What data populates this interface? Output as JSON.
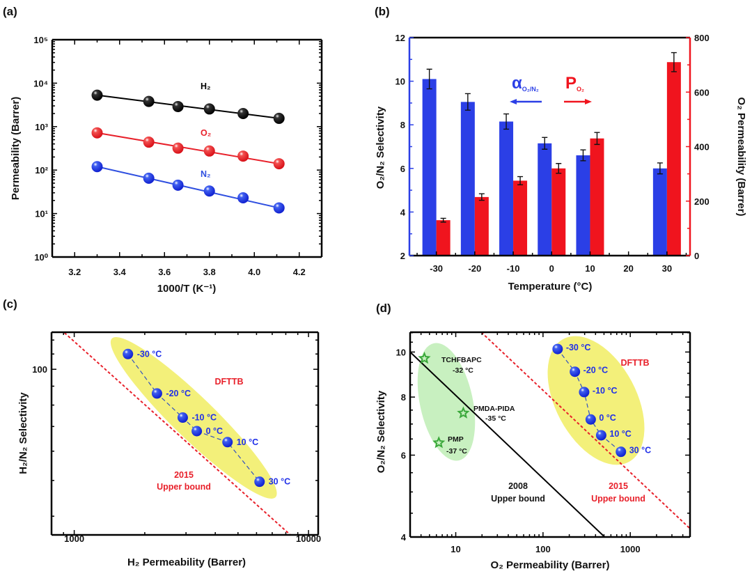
{
  "chart_data": [
    {
      "panel_label": "(a)",
      "type": "line",
      "xlabel": "1000/T (K⁻¹)",
      "ylabel": "Permeability (Barrer)",
      "xscale": "linear",
      "yscale": "log",
      "xlim": [
        3.1,
        4.3
      ],
      "ylim": [
        1,
        100000
      ],
      "xticks": [
        "3.2",
        "3.4",
        "3.6",
        "3.8",
        "4.0",
        "4.2"
      ],
      "yticks": [
        "10⁰",
        "10¹",
        "10²",
        "10³",
        "10⁴",
        "10⁵"
      ],
      "x": [
        3.3,
        3.53,
        3.66,
        3.8,
        3.95,
        4.11
      ],
      "series": [
        {
          "name": "H₂",
          "color": "#000000",
          "values": [
            5300,
            3800,
            2900,
            2550,
            2000,
            1550
          ]
        },
        {
          "name": "O₂",
          "color": "#e8202a",
          "values": [
            720,
            440,
            320,
            275,
            210,
            140
          ]
        },
        {
          "name": "N₂",
          "color": "#2f4fe0",
          "values": [
            120,
            65,
            45,
            33,
            23,
            13.5
          ]
        }
      ]
    },
    {
      "panel_label": "(b)",
      "type": "bar",
      "xlabel": "Temperature (°C)",
      "ylabel_left": "O₂/N₂ Selectivity",
      "ylabel_right": "O₂ Permeability (Barrer)",
      "categories": [
        "-30",
        "-20",
        "-10",
        "0",
        "10",
        "20",
        "30"
      ],
      "ylim_left": [
        2,
        12
      ],
      "ylim_right": [
        0,
        800
      ],
      "yticks_left": [
        "2",
        "4",
        "6",
        "8",
        "10",
        "12"
      ],
      "yticks_right": [
        "0",
        "200",
        "400",
        "600",
        "800"
      ],
      "legend": [
        {
          "symbol": "α",
          "sub": "O₂/N₂",
          "color": "#2b3fe6",
          "direction": "left"
        },
        {
          "symbol": "P",
          "sub": "O₂",
          "color": "#f0141e",
          "direction": "right"
        }
      ],
      "series": [
        {
          "axis": "left",
          "color": "#2b3fe6",
          "values": [
            10.1,
            9.05,
            8.15,
            7.15,
            6.6,
            null,
            6.0
          ],
          "errors": [
            0.45,
            0.38,
            0.35,
            0.27,
            0.25,
            null,
            0.25
          ]
        },
        {
          "axis": "right",
          "color": "#f0141e",
          "values": [
            130,
            215,
            275,
            320,
            430,
            null,
            710
          ],
          "errors": [
            7,
            12,
            15,
            18,
            22,
            null,
            35
          ]
        }
      ]
    },
    {
      "panel_label": "(c)",
      "type": "scatter",
      "xlabel": "H₂ Permeability (Barrer)",
      "ylabel": "H₂/N₂ Selectivity",
      "xscale": "log",
      "yscale": "log",
      "xlim": [
        800,
        11000
      ],
      "ylim": [
        35.6,
        126
      ],
      "xticks": [
        "1000",
        "10000"
      ],
      "yticks": [
        "100"
      ],
      "points": [
        {
          "label": "-30 °C",
          "x": 1695,
          "y": 110
        },
        {
          "label": "-20 °C",
          "x": 2255,
          "y": 86
        },
        {
          "label": "-10 °C",
          "x": 2905,
          "y": 74
        },
        {
          "label": "0 °C",
          "x": 3335,
          "y": 68
        },
        {
          "label": "10 °C",
          "x": 4510,
          "y": 63.5
        },
        {
          "label": "30 °C",
          "x": 6180,
          "y": 49.6
        }
      ],
      "material": "DFTTB",
      "upper_bound_2015": {
        "line1": "2015",
        "line2": "Upper bound",
        "from": [
          908,
          125.6
        ],
        "to": [
          8370,
          35.6
        ]
      },
      "colors": {
        "points": "#1f2fe8",
        "bound": "#e8202a",
        "highlight": "#f3f07a"
      }
    },
    {
      "panel_label": "(d)",
      "type": "scatter",
      "xlabel": "O₂ Permeability (Barrer)",
      "ylabel": "O₂/N₂ Selectivity",
      "xscale": "log",
      "yscale": "log",
      "xlim": [
        3,
        4840
      ],
      "ylim": [
        4,
        11.03
      ],
      "xticks": [
        "10",
        "100",
        "1000"
      ],
      "yticks": [
        "4",
        "6",
        "8",
        "10"
      ],
      "points": [
        {
          "label": "-30 °C",
          "x": 147,
          "y": 10.15
        },
        {
          "label": "-20 °C",
          "x": 232,
          "y": 9.07
        },
        {
          "label": "-10 °C",
          "x": 296,
          "y": 8.2
        },
        {
          "label": "0 °C",
          "x": 352,
          "y": 7.16
        },
        {
          "label": "10 °C",
          "x": 464,
          "y": 6.62
        },
        {
          "label": "30 °C",
          "x": 781,
          "y": 6.1
        }
      ],
      "material": "DFTTB",
      "references": [
        {
          "name": "TCHFBAPC",
          "temp": "-32 °C",
          "x": 4.37,
          "y": 9.69
        },
        {
          "name": "PMDA-PIDA",
          "temp": "-35 °C",
          "x": 12.2,
          "y": 7.39
        },
        {
          "name": "PMP",
          "temp": "-37 °C",
          "x": 6.4,
          "y": 6.38
        }
      ],
      "upper_bound_2008": {
        "line1": "2008",
        "line2": "Upper bound",
        "from": [
          3,
          10
        ],
        "to": [
          509,
          4
        ]
      },
      "upper_bound_2015": {
        "line1": "2015",
        "line2": "Upper bound",
        "from": [
          19.6,
          11.03
        ],
        "to": [
          4840,
          4.17
        ]
      },
      "colors": {
        "points": "#1f2fe8",
        "bound2015": "#e8202a",
        "bound2008": "#000000",
        "reference": "#3aa83a",
        "highlight": "#f3f07a",
        "reference_highlight": "#c8f0c0"
      }
    }
  ]
}
